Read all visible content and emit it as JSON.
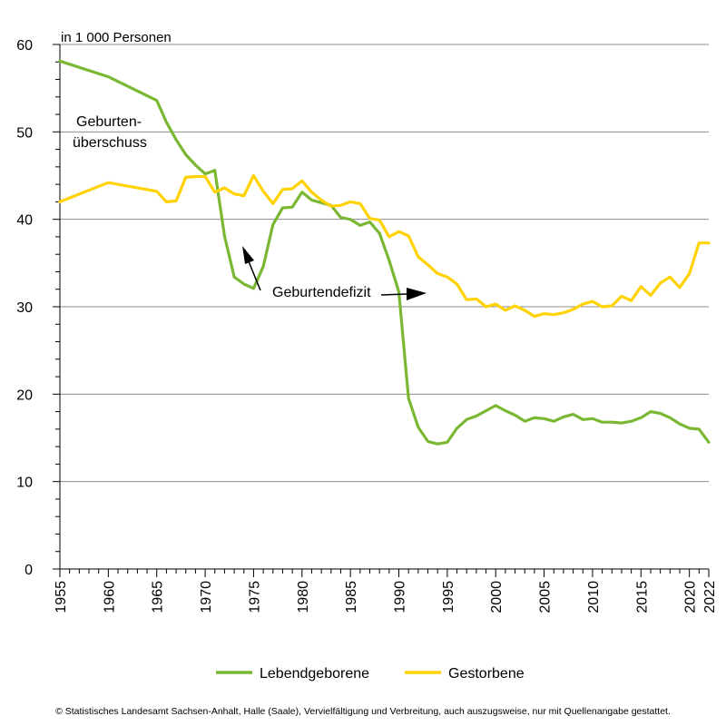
{
  "chart_data": {
    "type": "line",
    "title": "",
    "unit_label": "in 1 000 Personen",
    "xlabel": "",
    "ylabel": "in 1 000 Personen",
    "xlim": [
      1955,
      2022
    ],
    "ylim": [
      0,
      60
    ],
    "grid": true,
    "y_ticks": [
      0,
      10,
      20,
      30,
      40,
      50,
      60
    ],
    "x_tick_labels": [
      "1955",
      "1960",
      "1965",
      "1970",
      "1975",
      "1980",
      "1985",
      "1990",
      "1995",
      "2000",
      "2005",
      "2010",
      "2015",
      "2020",
      "2022"
    ],
    "legend": {
      "placement": "bottom-center"
    },
    "series": [
      {
        "name": "Lebendgeborene",
        "color": "#7ab833",
        "x": [
          1955,
          1960,
          1965,
          1966,
          1967,
          1968,
          1969,
          1970,
          1971,
          1972,
          1973,
          1974,
          1975,
          1976,
          1977,
          1978,
          1979,
          1980,
          1981,
          1982,
          1983,
          1984,
          1985,
          1986,
          1987,
          1988,
          1989,
          1990,
          1991,
          1992,
          1993,
          1994,
          1995,
          1996,
          1997,
          1998,
          1999,
          2000,
          2001,
          2002,
          2003,
          2004,
          2005,
          2006,
          2007,
          2008,
          2009,
          2010,
          2011,
          2012,
          2013,
          2014,
          2015,
          2016,
          2017,
          2018,
          2019,
          2020,
          2021,
          2022
        ],
        "values": [
          58.1,
          56.3,
          53.6,
          51.1,
          49.1,
          47.4,
          46.2,
          45.2,
          45.6,
          38.1,
          33.4,
          32.6,
          32.1,
          34.6,
          39.4,
          41.3,
          41.4,
          43.1,
          42.2,
          41.9,
          41.6,
          40.2,
          40.0,
          39.3,
          39.7,
          38.4,
          35.3,
          31.7,
          19.5,
          16.2,
          14.6,
          14.3,
          14.5,
          16.1,
          17.1,
          17.5,
          18.1,
          18.7,
          18.1,
          17.6,
          16.9,
          17.3,
          17.2,
          16.9,
          17.4,
          17.7,
          17.1,
          17.2,
          16.8,
          16.8,
          16.7,
          16.9,
          17.3,
          18.0,
          17.8,
          17.3,
          16.6,
          16.1,
          16.0,
          14.5
        ]
      },
      {
        "name": "Gestorbene",
        "color": "#ffd200",
        "x": [
          1955,
          1960,
          1965,
          1966,
          1967,
          1968,
          1969,
          1970,
          1971,
          1972,
          1973,
          1974,
          1975,
          1976,
          1977,
          1978,
          1979,
          1980,
          1981,
          1982,
          1983,
          1984,
          1985,
          1986,
          1987,
          1988,
          1989,
          1990,
          1991,
          1992,
          1993,
          1994,
          1995,
          1996,
          1997,
          1998,
          1999,
          2000,
          2001,
          2002,
          2003,
          2004,
          2005,
          2006,
          2007,
          2008,
          2009,
          2010,
          2011,
          2012,
          2013,
          2014,
          2015,
          2016,
          2017,
          2018,
          2019,
          2020,
          2021,
          2022
        ],
        "values": [
          42.0,
          44.2,
          43.2,
          42.0,
          42.1,
          44.8,
          44.9,
          44.9,
          43.1,
          43.6,
          42.9,
          42.7,
          45.0,
          43.2,
          41.8,
          43.4,
          43.5,
          44.4,
          43.1,
          42.2,
          41.5,
          41.6,
          42.0,
          41.8,
          40.1,
          39.9,
          38.0,
          38.6,
          38.1,
          35.7,
          34.8,
          33.8,
          33.4,
          32.6,
          30.8,
          30.9,
          30.0,
          30.3,
          29.6,
          30.1,
          29.6,
          28.9,
          29.2,
          29.1,
          29.3,
          29.7,
          30.3,
          30.6,
          30.0,
          30.1,
          31.2,
          30.7,
          32.3,
          31.3,
          32.7,
          33.4,
          32.2,
          33.8,
          37.3,
          37.3
        ]
      }
    ],
    "annotations": [
      {
        "text_lines": [
          "Geburten-",
          "überschuss"
        ]
      },
      {
        "text": "Geburtendefizit"
      }
    ]
  },
  "footer_text": "© Statistisches Landesamt Sachsen-Anhalt, Halle (Saale), Vervielfältigung und Verbreitung, auch auszugsweise, nur mit Quellenangabe gestattet."
}
